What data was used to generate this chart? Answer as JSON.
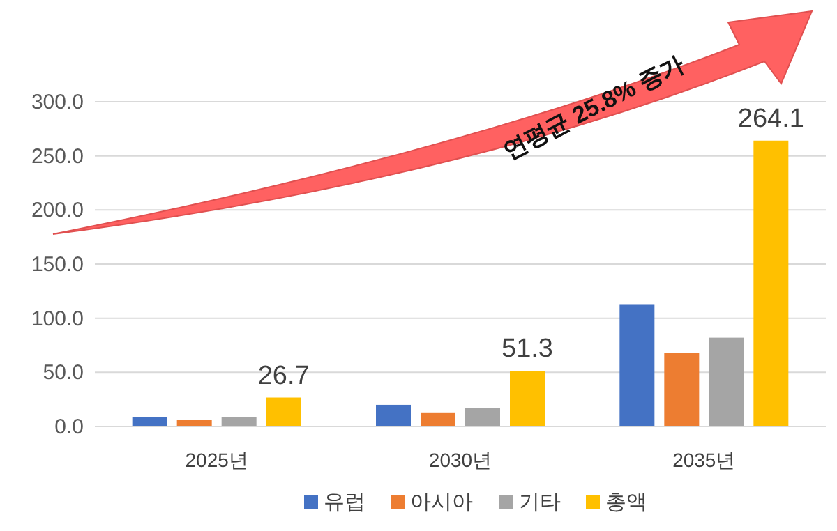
{
  "chart_data": {
    "type": "bar",
    "categories": [
      "2025년",
      "2030년",
      "2035년"
    ],
    "series": [
      {
        "name": "유럽",
        "color": "#4472c4",
        "values": [
          9,
          20,
          113
        ]
      },
      {
        "name": "아시아",
        "color": "#ed7d31",
        "values": [
          6,
          13,
          68
        ]
      },
      {
        "name": "기타",
        "color": "#a5a5a5",
        "values": [
          9,
          17,
          82
        ]
      },
      {
        "name": "총액",
        "color": "#ffc000",
        "values": [
          26.7,
          51.3,
          264.1
        ],
        "value_labels": [
          "26.7",
          "51.3",
          "264.1"
        ]
      }
    ],
    "ylim": [
      0,
      300
    ],
    "yticks": [
      {
        "value": 0,
        "label": "0.0"
      },
      {
        "value": 50,
        "label": "50.0"
      },
      {
        "value": 100,
        "label": "100.0"
      },
      {
        "value": 150,
        "label": "150.0"
      },
      {
        "value": 200,
        "label": "200.0"
      },
      {
        "value": 250,
        "label": "250.0"
      },
      {
        "value": 300,
        "label": "300.0"
      }
    ],
    "grid": "y",
    "legend": "bottom",
    "annotations": [
      "연평균 25.8% 증가"
    ]
  }
}
